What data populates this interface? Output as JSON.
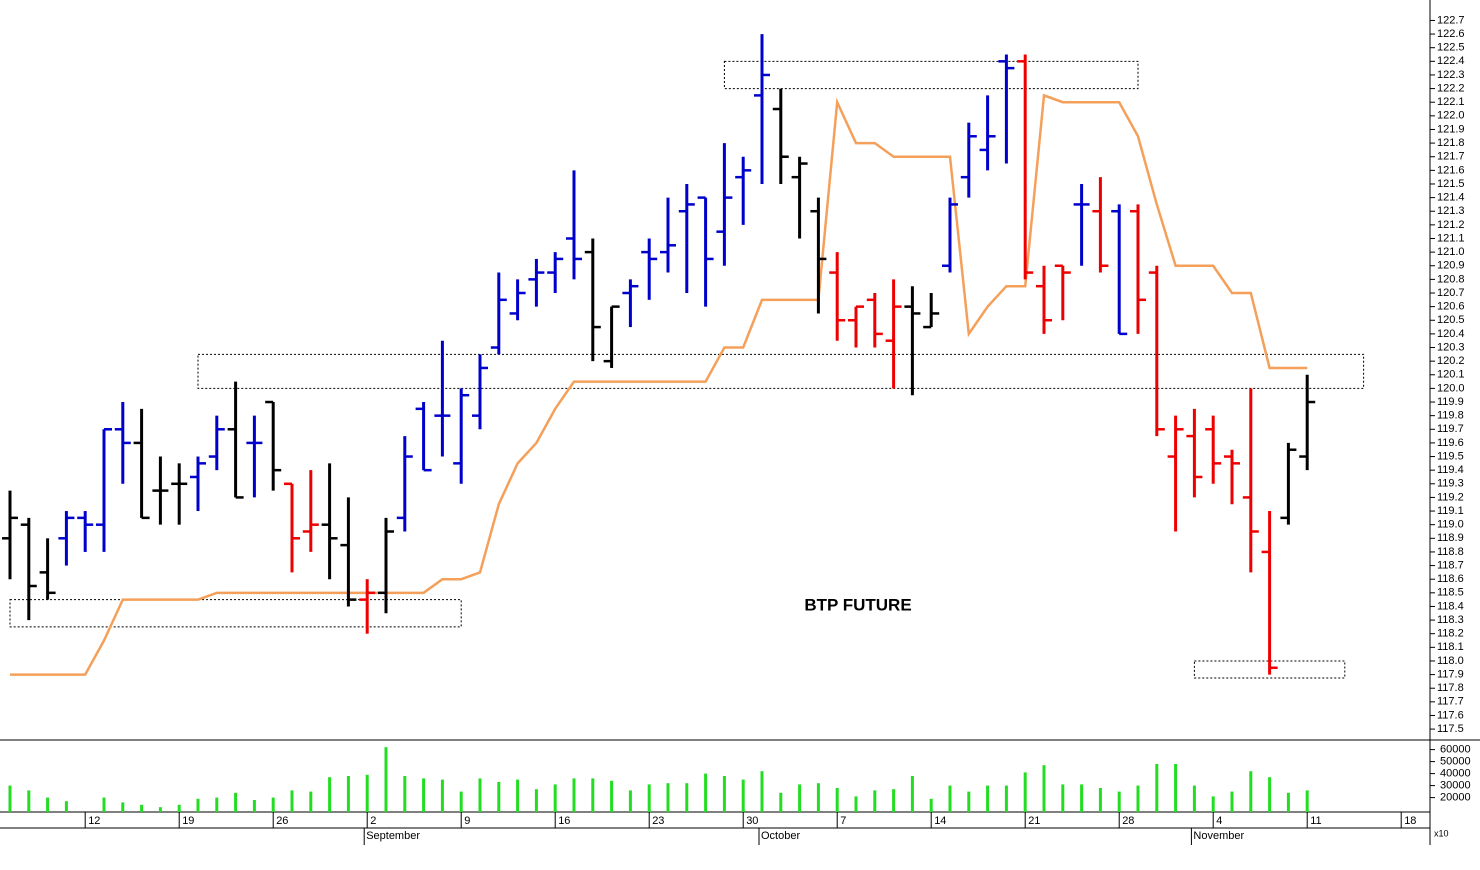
{
  "chart_data": {
    "type": "ohlc",
    "title": "BTP FUTURE",
    "categories": [
      null,
      null,
      null,
      null,
      "12",
      null,
      null,
      null,
      null,
      "19",
      null,
      null,
      null,
      null,
      "26",
      null,
      null,
      null,
      null,
      "2",
      null,
      null,
      null,
      null,
      "9",
      null,
      null,
      null,
      null,
      "16",
      null,
      null,
      null,
      null,
      "23",
      null,
      null,
      null,
      null,
      "30",
      null,
      null,
      null,
      null,
      "7",
      null,
      null,
      null,
      null,
      "14",
      null,
      null,
      null,
      null,
      "21",
      null,
      null,
      null,
      null,
      "28",
      null,
      null,
      null,
      null,
      "4",
      null,
      null,
      null,
      null,
      "11",
      null,
      null,
      null,
      null,
      "18",
      null
    ],
    "month_labels": [
      {
        "label": "September",
        "at": 19
      },
      {
        "label": "October",
        "at": 40
      },
      {
        "label": "November",
        "at": 63
      }
    ],
    "open": [
      118.9,
      119.0,
      118.65,
      118.9,
      119.05,
      119.0,
      119.7,
      119.6,
      119.25,
      119.3,
      119.35,
      119.5,
      119.7,
      119.6,
      119.9,
      119.3,
      118.95,
      119.0,
      118.85,
      118.45,
      118.5,
      119.05,
      119.85,
      119.8,
      119.45,
      119.8,
      120.3,
      120.55,
      120.8,
      120.85,
      121.1,
      121.0,
      120.2,
      120.7,
      121.0,
      121.0,
      121.3,
      121.4,
      121.15,
      121.55,
      122.15,
      122.05,
      121.55,
      121.3,
      120.85,
      120.5,
      120.65,
      120.35,
      120.6,
      120.45,
      120.9,
      121.55,
      121.75,
      122.4,
      122.4,
      120.75,
      120.9,
      121.35,
      121.3,
      121.3,
      121.3,
      120.85,
      119.5,
      119.65,
      119.7,
      119.5,
      119.2,
      118.8,
      119.05,
      119.5,
      null,
      null,
      null,
      null,
      null,
      null
    ],
    "high": [
      119.25,
      119.05,
      118.9,
      119.1,
      119.1,
      119.7,
      119.9,
      119.85,
      119.5,
      119.45,
      119.5,
      119.8,
      120.05,
      119.8,
      119.9,
      119.3,
      119.4,
      119.45,
      119.2,
      118.6,
      119.05,
      119.65,
      119.9,
      120.35,
      120.0,
      120.25,
      120.85,
      120.8,
      120.95,
      121.0,
      121.6,
      121.1,
      120.6,
      120.8,
      121.1,
      121.4,
      121.5,
      121.4,
      121.8,
      121.7,
      122.6,
      122.2,
      121.7,
      121.4,
      121.0,
      120.6,
      120.7,
      120.8,
      120.75,
      120.7,
      121.4,
      121.95,
      122.15,
      122.45,
      122.45,
      120.9,
      120.9,
      121.5,
      121.55,
      121.35,
      121.35,
      120.9,
      119.8,
      119.85,
      119.8,
      119.55,
      120.0,
      119.1,
      119.6,
      120.1,
      null,
      null,
      null,
      null,
      null,
      null
    ],
    "low": [
      118.6,
      118.3,
      118.45,
      118.7,
      118.8,
      118.8,
      119.3,
      119.05,
      119.0,
      119.0,
      119.1,
      119.4,
      119.2,
      119.2,
      119.25,
      118.65,
      118.8,
      118.6,
      118.4,
      118.2,
      118.35,
      118.95,
      119.4,
      119.5,
      119.3,
      119.7,
      120.25,
      120.5,
      120.6,
      120.7,
      120.8,
      120.2,
      120.15,
      120.45,
      120.65,
      120.85,
      120.7,
      120.6,
      120.9,
      121.2,
      121.5,
      121.5,
      121.1,
      120.55,
      120.35,
      120.3,
      120.3,
      120.0,
      119.95,
      120.45,
      120.85,
      121.4,
      121.6,
      121.65,
      120.8,
      120.4,
      120.5,
      120.9,
      120.85,
      120.4,
      120.4,
      119.65,
      118.95,
      119.2,
      119.3,
      119.15,
      118.65,
      117.9,
      119.0,
      119.4,
      null,
      null,
      null,
      null,
      null,
      null
    ],
    "close": [
      119.05,
      118.55,
      118.5,
      119.05,
      119.0,
      119.7,
      119.6,
      119.05,
      119.25,
      119.3,
      119.45,
      119.7,
      119.2,
      119.6,
      119.4,
      118.9,
      119.0,
      118.9,
      118.45,
      118.5,
      118.95,
      119.5,
      119.4,
      119.8,
      119.95,
      120.15,
      120.65,
      120.7,
      120.85,
      120.95,
      120.95,
      120.45,
      120.6,
      120.75,
      120.95,
      121.05,
      121.35,
      120.95,
      121.4,
      121.6,
      122.3,
      121.7,
      121.65,
      120.95,
      120.5,
      120.6,
      120.4,
      120.6,
      120.55,
      120.55,
      121.35,
      121.85,
      121.85,
      122.35,
      120.85,
      120.5,
      120.85,
      121.35,
      120.9,
      120.4,
      120.65,
      119.7,
      119.7,
      119.35,
      119.45,
      119.45,
      118.95,
      117.95,
      119.55,
      119.9,
      null,
      null,
      null,
      null,
      null,
      null
    ],
    "bar_colors": [
      "#000000",
      "#000000",
      "#000000",
      "#0000cc",
      "#0000cc",
      "#0000cc",
      "#0000cc",
      "#000000",
      "#000000",
      "#000000",
      "#0000cc",
      "#0000cc",
      "#000000",
      "#0000cc",
      "#000000",
      "#ee0000",
      "#ee0000",
      "#000000",
      "#000000",
      "#ee0000",
      "#000000",
      "#0000cc",
      "#0000cc",
      "#0000cc",
      "#0000cc",
      "#0000cc",
      "#0000cc",
      "#0000cc",
      "#0000cc",
      "#0000cc",
      "#0000cc",
      "#000000",
      "#000000",
      "#0000cc",
      "#0000cc",
      "#0000cc",
      "#0000cc",
      "#0000cc",
      "#0000cc",
      "#0000cc",
      "#0000cc",
      "#000000",
      "#000000",
      "#000000",
      "#ee0000",
      "#ee0000",
      "#ee0000",
      "#ee0000",
      "#000000",
      "#000000",
      "#0000cc",
      "#0000cc",
      "#0000cc",
      "#0000cc",
      "#ee0000",
      "#ee0000",
      "#ee0000",
      "#0000cc",
      "#ee0000",
      "#0000cc",
      "#ee0000",
      "#ee0000",
      "#ee0000",
      "#ee0000",
      "#ee0000",
      "#ee0000",
      "#ee0000",
      "#ee0000",
      "#000000",
      "#000000",
      null,
      null,
      null,
      null,
      null,
      null
    ],
    "stop_line": {
      "color": "#f5a05a",
      "values": [
        117.9,
        117.9,
        117.9,
        117.9,
        117.9,
        118.15,
        118.45,
        118.45,
        118.45,
        118.45,
        118.45,
        118.5,
        118.5,
        118.5,
        118.5,
        118.5,
        118.5,
        118.5,
        118.5,
        118.5,
        118.5,
        118.5,
        118.5,
        118.6,
        118.6,
        118.65,
        119.15,
        119.45,
        119.6,
        119.85,
        120.05,
        120.05,
        120.05,
        120.05,
        120.05,
        120.05,
        120.05,
        120.05,
        120.3,
        120.3,
        120.65,
        120.65,
        120.65,
        120.65,
        122.1,
        121.8,
        121.8,
        121.7,
        121.7,
        121.7,
        121.7,
        120.4,
        120.6,
        120.75,
        120.75,
        122.15,
        122.1,
        122.1,
        122.1,
        122.1,
        121.85,
        121.35,
        120.9,
        120.9,
        120.9,
        120.7,
        120.7,
        120.15,
        120.15,
        120.15,
        null,
        null,
        null,
        null,
        null,
        null
      ]
    },
    "zones": [
      {
        "start": 0,
        "end": 24,
        "low": 118.25,
        "high": 118.45
      },
      {
        "start": 10,
        "end": 72,
        "low": 120.0,
        "high": 120.25
      },
      {
        "start": 38,
        "end": 60,
        "low": 122.2,
        "high": 122.4
      },
      {
        "start": 63,
        "end": 71,
        "low": 117.875,
        "high": 118.0
      }
    ],
    "ylim": [
      117.42,
      122.85
    ],
    "yticks": [
      117.5,
      117.6,
      117.7,
      117.8,
      117.9,
      {
        "value": 118,
        "label": "118.0"
      },
      118.1,
      118.2,
      118.3,
      118.4,
      118.5,
      118.6,
      118.7,
      118.8,
      118.9,
      {
        "value": 119,
        "label": "119.0"
      },
      119.1,
      119.2,
      119.3,
      119.4,
      119.5,
      119.6,
      119.7,
      119.8,
      119.9,
      {
        "value": 120,
        "label": "120.0"
      },
      120.1,
      120.2,
      120.3,
      120.4,
      120.5,
      120.6,
      120.7,
      120.8,
      120.9,
      {
        "value": 121,
        "label": "121.0"
      },
      121.1,
      121.2,
      121.3,
      121.4,
      121.5,
      121.6,
      121.7,
      121.8,
      121.9,
      {
        "value": 122,
        "label": "122.0"
      },
      122.1,
      122.2,
      122.3,
      122.4,
      122.5,
      122.6,
      122.7
    ],
    "volume": {
      "color": "#22dd22",
      "multiplier_label": "x10",
      "ylim": [
        8000,
        68000
      ],
      "yticks": [
        20000,
        30000,
        40000,
        50000,
        60000
      ],
      "values": [
        30000,
        26000,
        20000,
        17000,
        null,
        20000,
        16000,
        14000,
        12000,
        14000,
        19000,
        20000,
        24000,
        18000,
        20000,
        26000,
        25000,
        37000,
        38000,
        39000,
        62000,
        38000,
        36000,
        35000,
        25000,
        36000,
        33000,
        35000,
        27000,
        31000,
        36000,
        36000,
        34000,
        26000,
        31000,
        32000,
        32000,
        40000,
        38000,
        35000,
        42000,
        24000,
        31000,
        32000,
        28000,
        21000,
        26000,
        27000,
        38000,
        19000,
        30000,
        25000,
        30000,
        30000,
        41000,
        47000,
        31000,
        31000,
        28000,
        25000,
        30000,
        48000,
        48000,
        30000,
        21000,
        25000,
        42000,
        37000,
        24000,
        26000,
        null,
        null,
        null,
        null,
        null,
        null
      ]
    }
  }
}
